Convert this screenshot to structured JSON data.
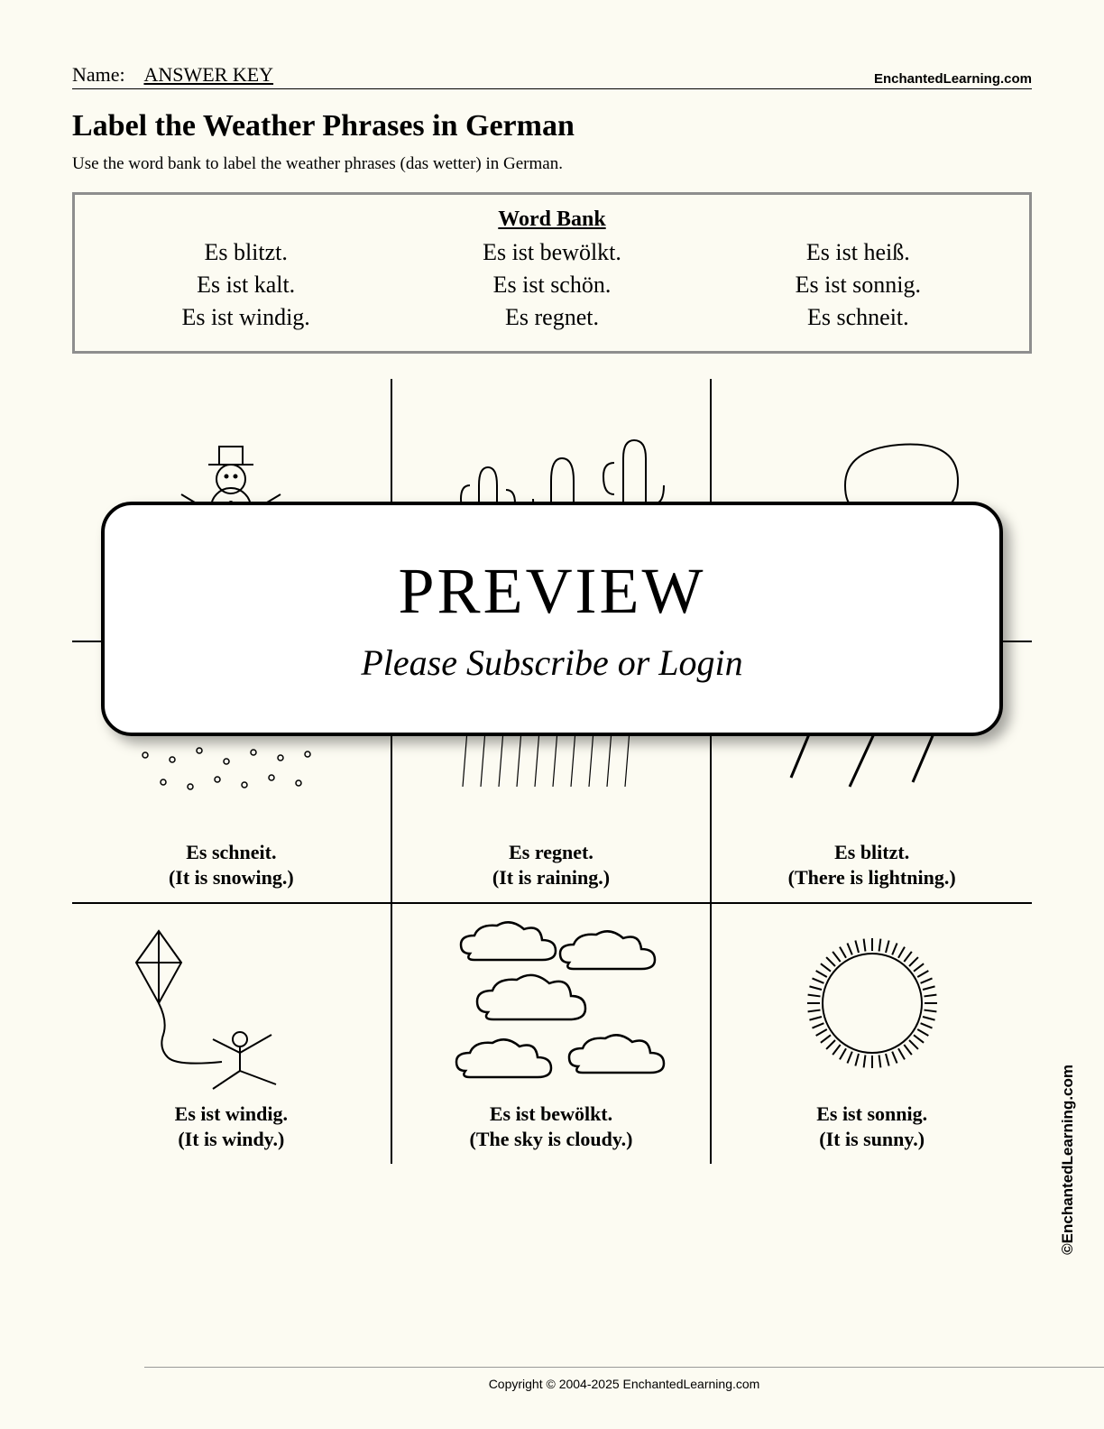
{
  "header": {
    "name_label": "Name:",
    "answer_key": "ANSWER KEY",
    "site": "EnchantedLearning.com"
  },
  "title": "Label the Weather Phrases in German",
  "instructions": "Use the word bank to label the weather phrases (das wetter) in German.",
  "wordbank": {
    "title": "Word Bank",
    "items": [
      "Es blitzt.",
      "Es ist bewölkt.",
      "Es ist heiß.",
      "Es ist kalt.",
      "Es ist schön.",
      "Es ist sonnig.",
      "Es ist windig.",
      "Es regnet.",
      "Es schneit."
    ]
  },
  "preview": {
    "title": "PREVIEW",
    "subtitle": "Please Subscribe or Login"
  },
  "cells": [
    {
      "icon": "snowman",
      "german": "",
      "english": ""
    },
    {
      "icon": "cactus",
      "german": "",
      "english": ""
    },
    {
      "icon": "tree",
      "german": "",
      "english": ""
    },
    {
      "icon": "snow",
      "german": "Es schneit.",
      "english": "(It is snowing.)"
    },
    {
      "icon": "rain",
      "german": "Es regnet.",
      "english": "(It is raining.)"
    },
    {
      "icon": "lightning",
      "german": "Es blitzt.",
      "english": "(There is lightning.)"
    },
    {
      "icon": "kite",
      "german": "Es ist windig.",
      "english": "(It is windy.)"
    },
    {
      "icon": "clouds",
      "german": "Es ist bewölkt.",
      "english": "(The sky is cloudy.)"
    },
    {
      "icon": "sun",
      "german": "Es ist sonnig.",
      "english": "(It is sunny.)"
    }
  ],
  "vertical_copyright": "©EnchantedLearning.com",
  "copyright": "Copyright © 2004-2025 EnchantedLearning.com"
}
